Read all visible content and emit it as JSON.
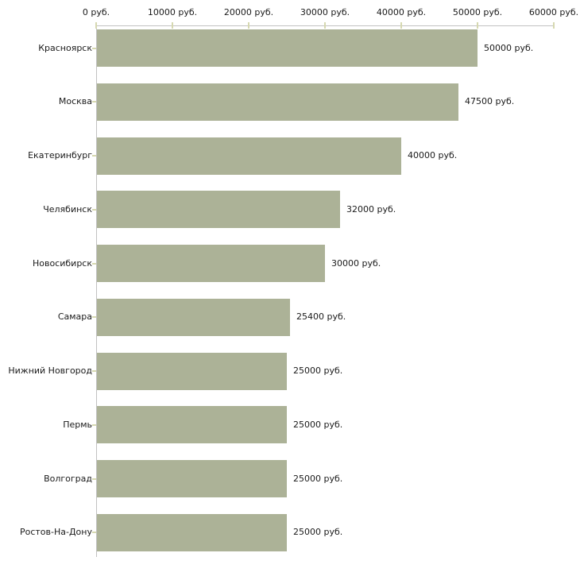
{
  "chart_data": {
    "type": "bar",
    "orientation": "horizontal",
    "title": "",
    "unit": "руб.",
    "categories": [
      "Красноярск",
      "Москва",
      "Екатеринбург",
      "Челябинск",
      "Новосибирск",
      "Самара",
      "Нижний Новгород",
      "Пермь",
      "Волгоград",
      "Ростов-На-Дону"
    ],
    "values": [
      50000,
      47500,
      40000,
      32000,
      30000,
      25400,
      25000,
      25000,
      25000,
      25000
    ],
    "value_labels": [
      "50000 руб.",
      "47500 руб.",
      "40000 руб.",
      "32000 руб.",
      "30000 руб.",
      "25400 руб.",
      "25000 руб.",
      "25000 руб.",
      "25000 руб.",
      "25000 руб."
    ],
    "x_axis": {
      "position": "top",
      "min": 0,
      "max": 60000,
      "ticks": [
        0,
        10000,
        20000,
        30000,
        40000,
        50000,
        60000
      ],
      "tick_labels": [
        "0 руб.",
        "10000 руб.",
        "20000 руб.",
        "30000 руб.",
        "40000 руб.",
        "50000 руб.",
        "60000 руб."
      ]
    },
    "legend": null,
    "grid": false,
    "colors": {
      "bar": "#acb297",
      "axis_line": "#c1c1c1",
      "tick": "#d6d8b0",
      "background": "#ffffff",
      "text": "#1a1a1a"
    }
  }
}
